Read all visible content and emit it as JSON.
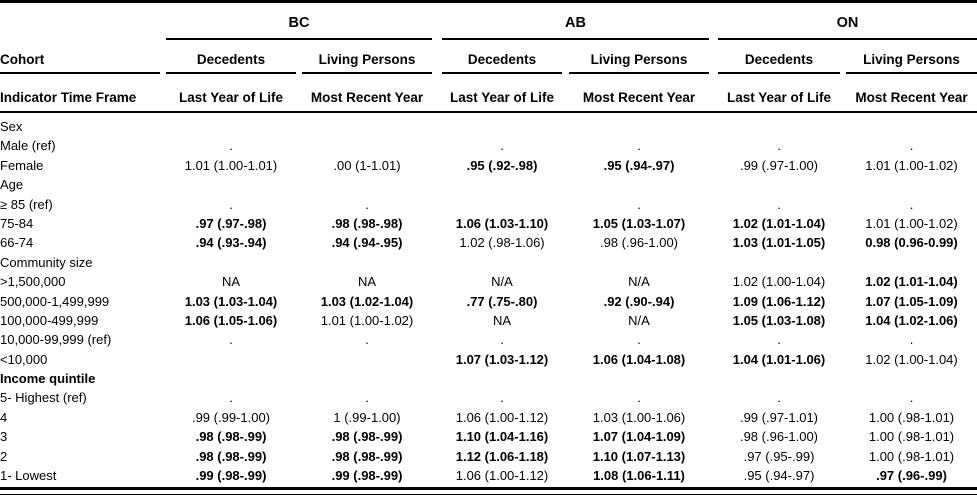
{
  "page": {
    "background": "#ffffff",
    "text_color": "#000000"
  },
  "table": {
    "provinces": [
      "BC",
      "AB",
      "ON"
    ],
    "cohort_label": "Cohort",
    "indicator_label": "Indicator Time Frame",
    "subgroup_headers": {
      "decedents": "Decedents",
      "living_persons": "Living Persons"
    },
    "timeframe_headers": {
      "last_year_of_life": "Last Year of Life",
      "most_recent_year": "Most Recent Year"
    },
    "columns": [
      "bc-decedents",
      "bc-living-persons",
      "ab-decedents",
      "ab-living-persons",
      "on-decedents",
      "on-living-persons"
    ],
    "rows": [
      {
        "label": "Sex",
        "type": "section"
      },
      {
        "label": "Male (ref)",
        "type": "data",
        "cells": [
          ".",
          "",
          ".",
          ".",
          ".",
          "."
        ]
      },
      {
        "label": "Female",
        "type": "data",
        "cells": [
          "1.01 (1.00-1.01)",
          ".00 (1-1.01)",
          {
            "t": ".95 (.92-.98)",
            "b": true
          },
          {
            "t": ".95 (.94-.97)",
            "b": true
          },
          ".99 (.97-1.00)",
          "1.01 (1.00-1.02)"
        ]
      },
      {
        "label": "Age",
        "type": "section"
      },
      {
        "label": "≥ 85 (ref)",
        "type": "data",
        "cells": [
          ".",
          ".",
          "",
          ".",
          ".",
          "."
        ]
      },
      {
        "label": "75-84",
        "type": "data",
        "cells": [
          {
            "t": ".97 (.97-.98)",
            "b": true
          },
          {
            "t": ".98 (.98-.98)",
            "b": true
          },
          {
            "t": "1.06 (1.03-1.10)",
            "b": true
          },
          {
            "t": "1.05 (1.03-1.07)",
            "b": true
          },
          {
            "t": "1.02 (1.01-1.04)",
            "b": true
          },
          "1.01 (1.00-1.02)"
        ]
      },
      {
        "label": "66-74",
        "type": "data",
        "cells": [
          {
            "t": ".94 (.93-.94)",
            "b": true
          },
          {
            "t": ".94 (.94-.95)",
            "b": true
          },
          "1.02 (.98-1.06)",
          ".98 (.96-1.00)",
          {
            "t": "1.03 (1.01-1.05)",
            "b": true
          },
          {
            "t": "0.98 (0.96-0.99)",
            "b": true
          }
        ]
      },
      {
        "label": "Community size",
        "type": "section"
      },
      {
        "label": ">1,500,000",
        "type": "data",
        "cells": [
          "NA",
          "NA",
          "N/A",
          "N/A",
          "1.02 (1.00-1.04)",
          {
            "t": "1.02 (1.01-1.04)",
            "b": true
          }
        ]
      },
      {
        "label": "500,000-1,499,999",
        "type": "data",
        "cells": [
          {
            "t": "1.03 (1.03-1.04)",
            "b": true
          },
          {
            "t": "1.03 (1.02-1.04)",
            "b": true
          },
          {
            "t": ".77 (.75-.80)",
            "b": true
          },
          {
            "t": ".92 (.90-.94)",
            "b": true
          },
          {
            "t": "1.09 (1.06-1.12)",
            "b": true
          },
          {
            "t": "1.07 (1.05-1.09)",
            "b": true
          }
        ]
      },
      {
        "label": "100,000-499,999",
        "type": "data",
        "cells": [
          {
            "t": "1.06 (1.05-1.06)",
            "b": true
          },
          "1.01 (1.00-1.02)",
          "NA",
          "N/A",
          {
            "t": "1.05 (1.03-1.08)",
            "b": true
          },
          {
            "t": "1.04 (1.02-1.06)",
            "b": true
          }
        ]
      },
      {
        "label": "10,000-99,999 (ref)",
        "type": "data",
        "cells": [
          ".",
          ".",
          ".",
          ".",
          ".",
          "."
        ]
      },
      {
        "label": "<10,000",
        "type": "data",
        "cells": [
          "",
          "",
          {
            "t": "1.07 (1.03-1.12)",
            "b": true
          },
          {
            "t": "1.06 (1.04-1.08)",
            "b": true
          },
          {
            "t": "1.04 (1.01-1.06)",
            "b": true
          },
          "1.02 (1.00-1.04)"
        ]
      },
      {
        "label": "Income quintile",
        "type": "section",
        "bold": true
      },
      {
        "label": "5- Highest (ref)",
        "type": "data",
        "cells": [
          ".",
          ".",
          ".",
          ".",
          ".",
          "."
        ]
      },
      {
        "label": "4",
        "type": "data",
        "cells": [
          ".99 (.99-1.00)",
          "1 (.99-1.00)",
          "1.06 (1.00-1.12)",
          "1.03 (1.00-1.06)",
          ".99 (.97-1.01)",
          "1.00 (.98-1.01)"
        ]
      },
      {
        "label": "3",
        "type": "data",
        "cells": [
          {
            "t": ".98 (.98-.99)",
            "b": true
          },
          {
            "t": ".98 (.98-.99)",
            "b": true
          },
          {
            "t": "1.10 (1.04-1.16)",
            "b": true
          },
          {
            "t": "1.07 (1.04-1.09)",
            "b": true
          },
          ".98 (.96-1.00)",
          "1.00 (.98-1.01)"
        ]
      },
      {
        "label": "2",
        "type": "data",
        "cells": [
          {
            "t": ".98 (.98-.99)",
            "b": true
          },
          {
            "t": ".98 (.98-.99)",
            "b": true
          },
          {
            "t": "1.12 (1.06-1.18)",
            "b": true
          },
          {
            "t": "1.10 (1.07-1.13)",
            "b": true
          },
          ".97 (.95-.99)",
          "1.00 (.98-1.01)"
        ]
      },
      {
        "label": "1- Lowest",
        "type": "data",
        "cells": [
          {
            "t": ".99 (.98-.99)",
            "b": true
          },
          {
            "t": ".99 (.98-.99)",
            "b": true
          },
          "1.06 (1.00-1.12)",
          {
            "t": "1.08 (1.06-1.11)",
            "b": true
          },
          ".95 (.94-.97)",
          {
            "t": ".97 (.96-.99)",
            "b": true
          }
        ]
      }
    ]
  }
}
